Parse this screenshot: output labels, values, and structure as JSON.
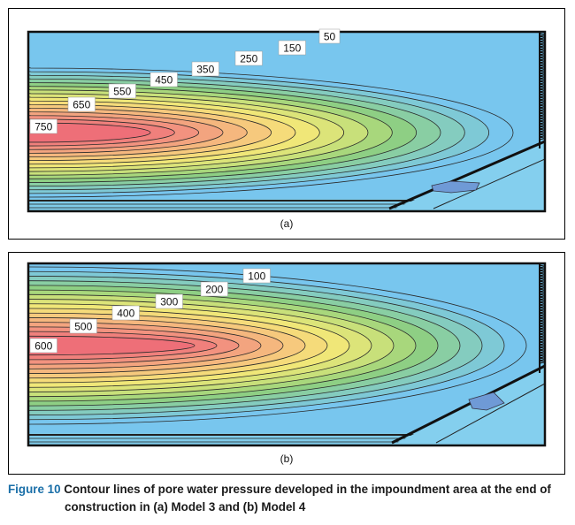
{
  "figure": {
    "number": "Figure 10",
    "caption_text": "Contour lines of pore water pressure developed in the impoundment area at the end of",
    "caption_text_2": "construction in (a) Model 3 and (b) Model 4"
  },
  "panels": [
    {
      "id": "a",
      "label": "(a)",
      "contour_labels": [
        "50",
        "150",
        "250",
        "350",
        "450",
        "550",
        "650",
        "750"
      ]
    },
    {
      "id": "b",
      "label": "(b)",
      "contour_labels": [
        "100",
        "200",
        "300",
        "400",
        "500",
        "600"
      ]
    }
  ],
  "colors": {
    "high": "#ee6f78",
    "mid": "#f5e878",
    "low": "#78c6ee",
    "figure_label": "#1a6fa8"
  }
}
